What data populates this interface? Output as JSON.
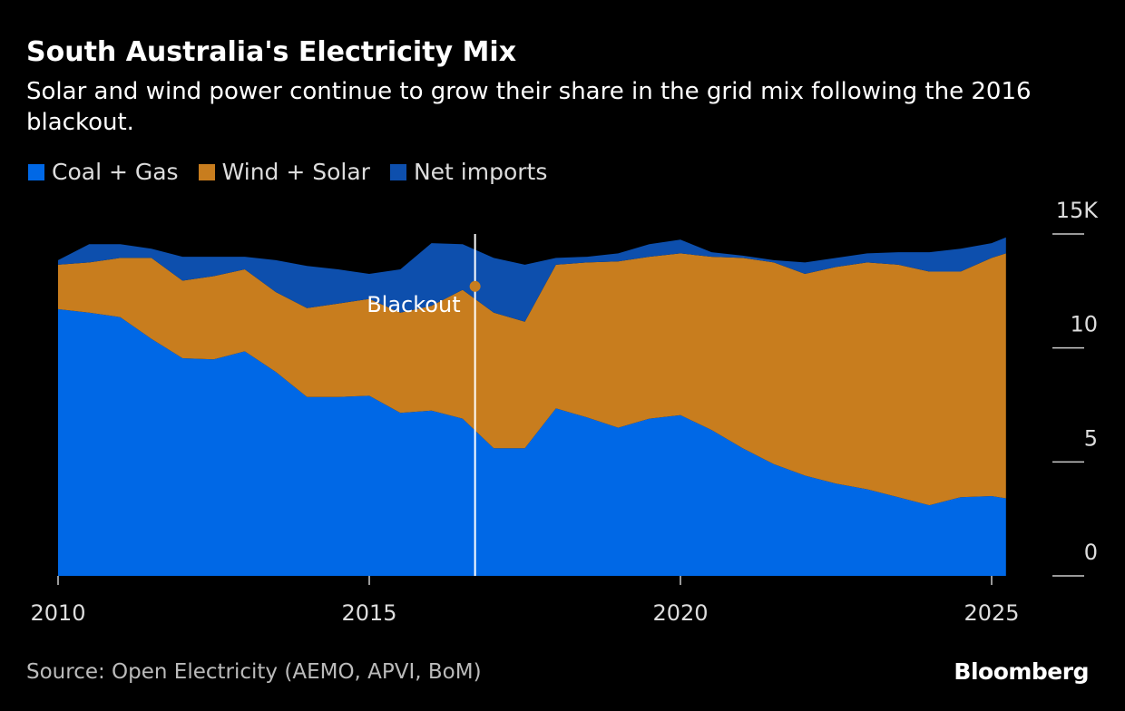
{
  "chart_data": {
    "type": "stacked_area",
    "title": "South Australia's Electricity Mix",
    "subtitle": "Solar and wind power continue to grow their share in the grid mix following the 2016 blackout.",
    "source": "Source: Open Electricity (AEMO, APVI, BoM)",
    "brand": "Bloomberg",
    "x": [
      2010,
      2010.5,
      2011,
      2011.5,
      2012,
      2012.5,
      2013,
      2013.5,
      2014,
      2014.5,
      2015,
      2015.5,
      2016,
      2016.5,
      2017,
      2017.5,
      2018,
      2018.5,
      2019,
      2019.5,
      2020,
      2020.5,
      2021,
      2021.5,
      2022,
      2022.5,
      2023,
      2023.5,
      2024,
      2024.5,
      2025,
      2025.23
    ],
    "series": [
      {
        "name": "Coal + Gas",
        "color": "#0068e6",
        "values": [
          11.7,
          11.55,
          11.35,
          10.4,
          9.55,
          9.5,
          9.85,
          8.95,
          7.85,
          7.85,
          7.9,
          7.15,
          7.25,
          6.9,
          5.6,
          5.6,
          7.35,
          6.95,
          6.5,
          6.9,
          7.05,
          6.4,
          5.6,
          4.9,
          4.4,
          4.05,
          3.8,
          3.45,
          3.1,
          3.45,
          3.5,
          3.4
        ]
      },
      {
        "name": "Wind + Solar",
        "color": "#c87d1e",
        "values": [
          1.95,
          2.2,
          2.6,
          3.55,
          3.4,
          3.65,
          3.6,
          3.5,
          3.9,
          4.1,
          4.25,
          4.4,
          4.6,
          5.65,
          5.95,
          5.55,
          6.3,
          6.8,
          7.3,
          7.1,
          7.1,
          7.6,
          8.35,
          8.85,
          8.85,
          9.5,
          9.95,
          10.2,
          10.25,
          9.9,
          10.45,
          10.75
        ]
      },
      {
        "name": "Net imports",
        "color": "#0d4fad",
        "values": [
          0.2,
          0.8,
          0.6,
          0.4,
          1.05,
          0.85,
          0.55,
          1.4,
          1.85,
          1.5,
          1.1,
          1.9,
          2.75,
          2.0,
          2.4,
          2.5,
          0.3,
          0.25,
          0.35,
          0.55,
          0.6,
          0.2,
          0.1,
          0.1,
          0.5,
          0.4,
          0.4,
          0.55,
          0.85,
          1.0,
          0.65,
          0.7
        ]
      }
    ],
    "xlim": [
      2010,
      2025.23
    ],
    "xticks": [
      2010,
      2015,
      2020,
      2025
    ],
    "ylim": [
      0,
      15
    ],
    "yticks": [
      0,
      5,
      10,
      {
        "value": 15,
        "label": "15K"
      }
    ],
    "y_axis_side": "right",
    "annotation": {
      "text": "Blackout",
      "x": 2016.7,
      "y": 12.7,
      "color": "#c87d1e"
    }
  }
}
